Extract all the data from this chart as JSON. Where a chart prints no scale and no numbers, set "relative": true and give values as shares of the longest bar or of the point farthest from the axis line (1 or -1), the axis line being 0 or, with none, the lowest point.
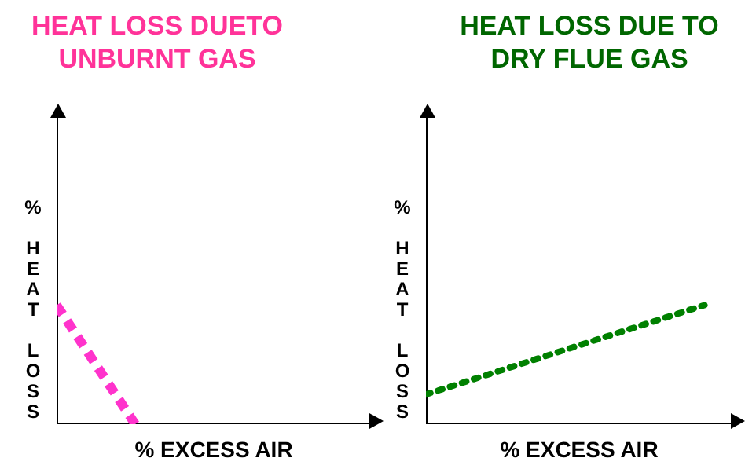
{
  "chart_data": [
    {
      "type": "line",
      "title": "HEAT LOSS DUETO\nUNBURNT GAS",
      "xlabel": "% EXCESS AIR",
      "ylabel": "% HEAT LOSS",
      "relative": true,
      "tick_labels": false,
      "grid": false,
      "legend": false,
      "marker": "none",
      "line_style": "dashed",
      "categories": [
        null,
        null,
        null,
        null,
        null
      ],
      "series": [
        {
          "color": "#ff33cc",
          "values": [
            1,
            0,
            null,
            null,
            null
          ]
        }
      ]
    },
    {
      "type": "line",
      "title": "HEAT LOSS DUE TO\nDRY FLUE GAS",
      "xlabel": "% EXCESS AIR",
      "ylabel": "% HEAT LOSS",
      "relative": true,
      "tick_labels": false,
      "grid": false,
      "legend": false,
      "marker": "none",
      "line_style": "dotted",
      "categories": [
        null,
        null,
        null,
        null,
        null,
        null,
        null,
        null,
        null,
        null,
        null,
        null
      ],
      "series": [
        {
          "color": "#008000",
          "values": [
            0.25,
            null,
            null,
            null,
            null,
            null,
            null,
            null,
            null,
            null,
            1,
            null
          ]
        }
      ]
    }
  ]
}
